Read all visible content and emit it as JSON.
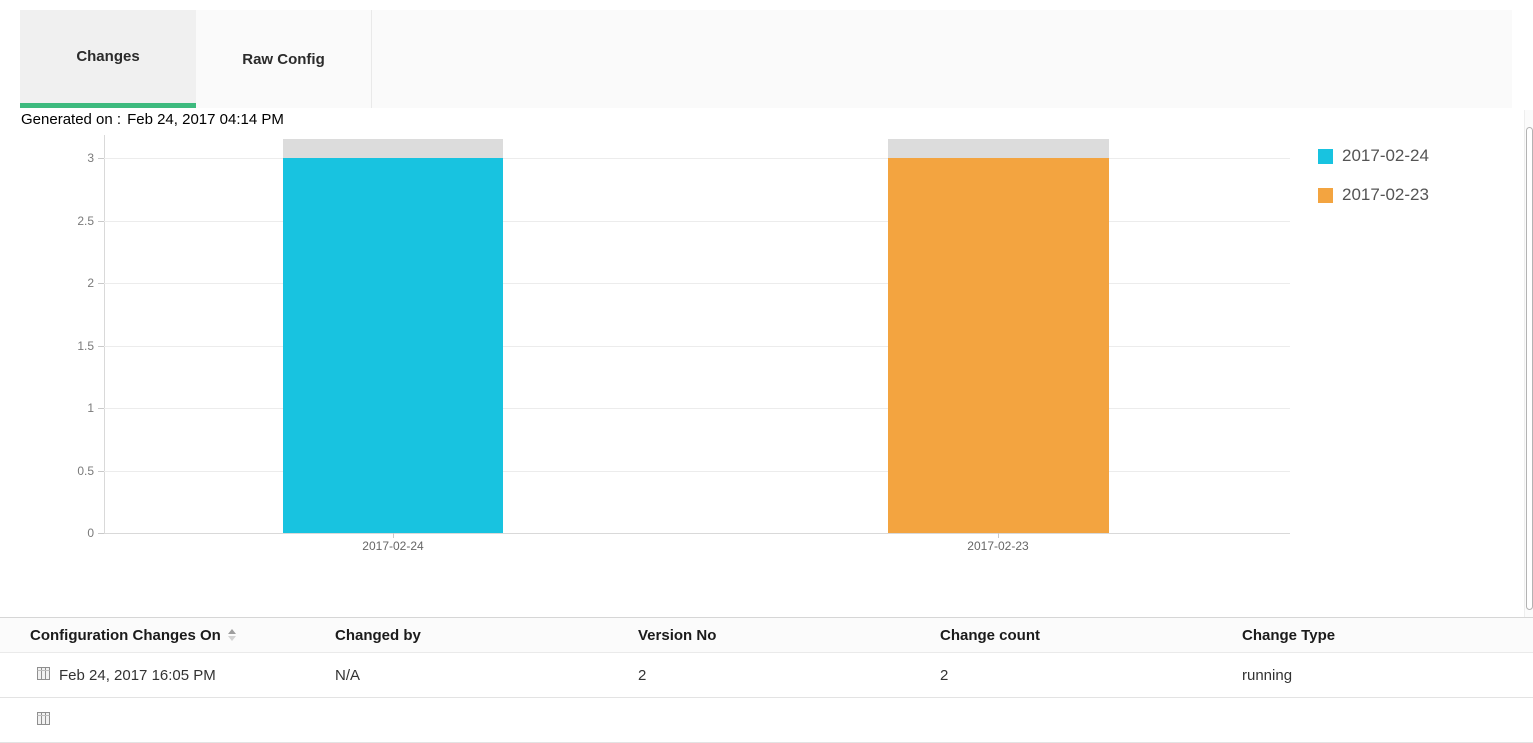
{
  "tabs": [
    {
      "label": "Changes",
      "active": true
    },
    {
      "label": "Raw Config",
      "active": false
    }
  ],
  "generated": {
    "label": "Generated on :",
    "value": "Feb 24, 2017 04:14 PM"
  },
  "chart_data": {
    "type": "bar",
    "categories": [
      "2017-02-24",
      "2017-02-23"
    ],
    "series": [
      {
        "name": "2017-02-24",
        "color": "#18C3E0",
        "values": [
          3,
          0
        ]
      },
      {
        "name": "2017-02-23",
        "color": "#F3A440",
        "values": [
          0,
          3
        ]
      }
    ],
    "bar_total_overlay": {
      "color": "#DCDCDC",
      "value": 3.15
    },
    "y_ticks": [
      0,
      0.5,
      1,
      1.5,
      2,
      2.5,
      3
    ],
    "ylim": [
      0,
      3.15
    ],
    "grid": true,
    "legend_position": "right",
    "legend": [
      {
        "label": "2017-02-24",
        "color": "#18C3E0"
      },
      {
        "label": "2017-02-23",
        "color": "#F3A440"
      }
    ],
    "colors": {
      "accent_green": "#3dba7e",
      "grid": "#ececec",
      "axis": "#d9d9d9"
    }
  },
  "table": {
    "headers": [
      "Configuration Changes On",
      "Changed by",
      "Version No",
      "Change count",
      "Change Type"
    ],
    "sorted_by": "Configuration Changes On",
    "rows": [
      {
        "changed_on": "Feb 24, 2017 16:05 PM",
        "changed_by": "N/A",
        "version_no": "2",
        "change_count": "2",
        "change_type": "running"
      }
    ],
    "partial_second_row_visible": true
  }
}
